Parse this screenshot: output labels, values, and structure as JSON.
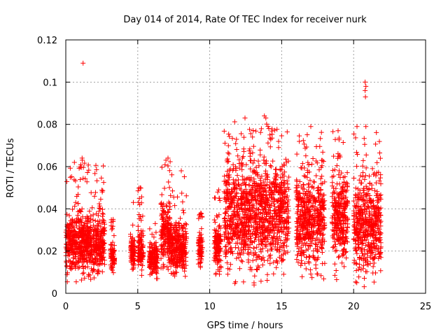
{
  "chart_data": {
    "type": "scatter",
    "title": "Day 014 of 2014, Rate Of TEC Index for receiver nurk",
    "xlabel": "GPS time / hours",
    "ylabel": "ROTI / TECUs",
    "xlim": [
      0,
      25
    ],
    "ylim": [
      0,
      0.12
    ],
    "x_ticks": [
      0,
      5,
      10,
      15,
      20,
      25
    ],
    "x_tick_labels": [
      "0",
      "5",
      "10",
      "15",
      "20",
      "25"
    ],
    "y_ticks": [
      0,
      0.02,
      0.04,
      0.06,
      0.08,
      0.1,
      0.12
    ],
    "y_tick_labels": [
      "0",
      "0.02",
      "0.04",
      "0.06",
      "0.08",
      "0.1",
      "0.12"
    ],
    "grid": true,
    "marker": "+",
    "color": "#ff0000",
    "series": [
      {
        "name": "ROTI",
        "clusters": [
          {
            "x_start": 0.0,
            "x_end": 2.7,
            "y_min": 0.004,
            "y_max": 0.064,
            "y_typical_max": 0.04
          },
          {
            "x_start": 3.1,
            "x_end": 3.4,
            "y_min": 0.008,
            "y_max": 0.035,
            "y_typical_max": 0.025
          },
          {
            "x_start": 4.5,
            "x_end": 4.8,
            "y_min": 0.007,
            "y_max": 0.043,
            "y_typical_max": 0.03
          },
          {
            "x_start": 5.0,
            "x_end": 5.4,
            "y_min": 0.008,
            "y_max": 0.05,
            "y_typical_max": 0.03
          },
          {
            "x_start": 5.8,
            "x_end": 6.4,
            "y_min": 0.006,
            "y_max": 0.033,
            "y_typical_max": 0.025
          },
          {
            "x_start": 6.6,
            "x_end": 7.3,
            "y_min": 0.008,
            "y_max": 0.063,
            "y_typical_max": 0.045
          },
          {
            "x_start": 7.3,
            "x_end": 8.4,
            "y_min": 0.004,
            "y_max": 0.058,
            "y_typical_max": 0.035
          },
          {
            "x_start": 9.2,
            "x_end": 9.5,
            "y_min": 0.01,
            "y_max": 0.038,
            "y_typical_max": 0.03
          },
          {
            "x_start": 10.3,
            "x_end": 10.8,
            "y_min": 0.007,
            "y_max": 0.049,
            "y_typical_max": 0.035
          },
          {
            "x_start": 11.0,
            "x_end": 15.5,
            "y_min": 0.003,
            "y_max": 0.083,
            "y_typical_max": 0.065
          },
          {
            "x_start": 16.0,
            "x_end": 18.0,
            "y_min": 0.004,
            "y_max": 0.079,
            "y_typical_max": 0.06
          },
          {
            "x_start": 18.5,
            "x_end": 19.6,
            "y_min": 0.004,
            "y_max": 0.077,
            "y_typical_max": 0.06
          },
          {
            "x_start": 20.0,
            "x_end": 21.9,
            "y_min": 0.003,
            "y_max": 0.079,
            "y_typical_max": 0.06
          }
        ],
        "outliers": [
          {
            "x": 1.2,
            "y": 0.109
          },
          {
            "x": 20.8,
            "y": 0.1
          },
          {
            "x": 20.85,
            "y": 0.098
          },
          {
            "x": 20.8,
            "y": 0.096
          },
          {
            "x": 20.82,
            "y": 0.093
          },
          {
            "x": 13.8,
            "y": 0.084
          },
          {
            "x": 13.9,
            "y": 0.083
          },
          {
            "x": 7.1,
            "y": 0.064
          },
          {
            "x": 1.15,
            "y": 0.063
          },
          {
            "x": 0.6,
            "y": 0.062
          }
        ]
      }
    ]
  }
}
